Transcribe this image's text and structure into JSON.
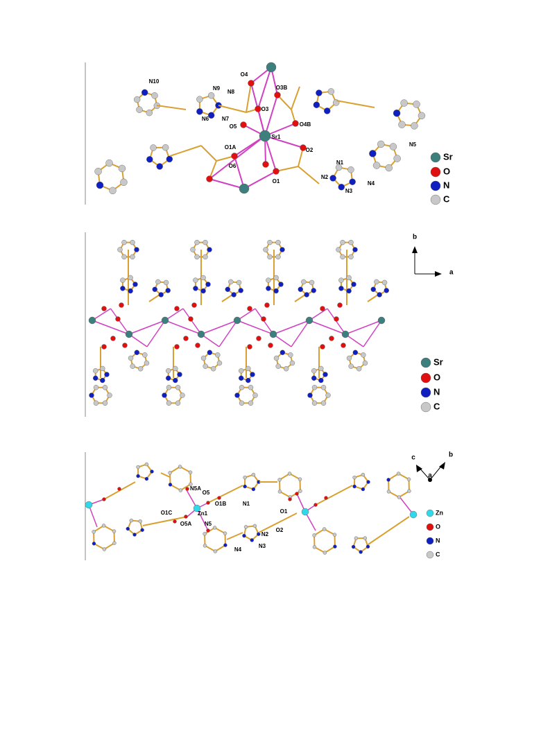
{
  "panels": [
    {
      "labels": [
        "O4",
        "N10",
        "N9",
        "N8",
        "O3B",
        "O3",
        "N6",
        "N7",
        "O4B",
        "O5",
        "Sr1",
        "O1A",
        "O2",
        "N5",
        "O6",
        "N1",
        "N2",
        "O1",
        "N4",
        "N3"
      ],
      "legend": [
        "Sr",
        "O",
        "N",
        "C"
      ]
    },
    {
      "axes": [
        "b",
        "a"
      ],
      "legend": [
        "Sr",
        "O",
        "N",
        "C"
      ]
    },
    {
      "labels": [
        "N5A",
        "O5",
        "O1B",
        "O1C",
        "Zn1",
        "O5A",
        "N5",
        "N1",
        "O1",
        "N2",
        "O2",
        "N4",
        "N3"
      ],
      "axes": [
        "c",
        "b",
        "a"
      ],
      "legend": [
        "Zn",
        "O",
        "N",
        "C"
      ]
    }
  ]
}
